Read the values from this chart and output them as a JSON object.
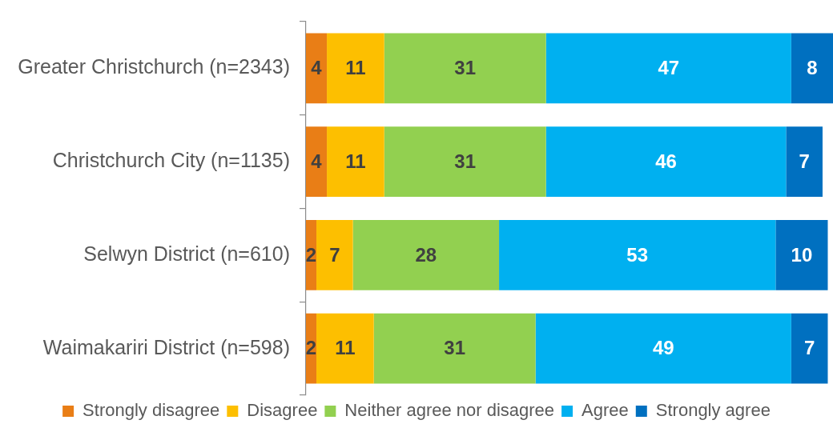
{
  "chart_data": {
    "type": "bar",
    "orientation": "horizontal",
    "stacked": true,
    "data_labels": true,
    "legend": "bottom",
    "categories": [
      "Greater Christchurch (n=2343)",
      "Christchurch City (n=1135)",
      "Selwyn District (n=610)",
      "Waimakariri District (n=598)"
    ],
    "series": [
      {
        "name": "Strongly disagree",
        "color": "#e97e16",
        "values": [
          4,
          4,
          2,
          2
        ]
      },
      {
        "name": "Disagree",
        "color": "#fdbf00",
        "values": [
          11,
          11,
          7,
          11
        ]
      },
      {
        "name": "Neither agree nor disagree",
        "color": "#92d050",
        "values": [
          31,
          31,
          28,
          31
        ]
      },
      {
        "name": "Agree",
        "color": "#00b0f0",
        "values": [
          47,
          46,
          53,
          49
        ]
      },
      {
        "name": "Strongly agree",
        "color": "#0070c0",
        "values": [
          8,
          7,
          10,
          7
        ]
      }
    ]
  }
}
